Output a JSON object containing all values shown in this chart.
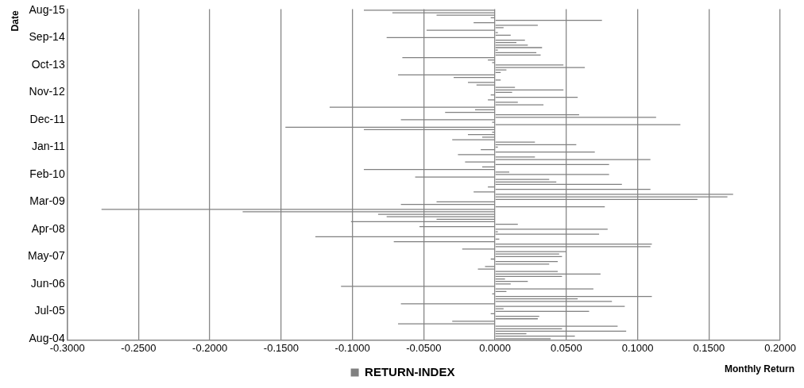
{
  "chart_data": {
    "type": "bar",
    "orientation": "horizontal",
    "ylabel": "Date",
    "xlabel": "Monthly Return",
    "categories": [
      "Aug-15",
      null,
      null,
      null,
      null,
      null,
      null,
      null,
      null,
      null,
      null,
      "Sep-14",
      null,
      null,
      null,
      null,
      null,
      null,
      null,
      null,
      null,
      null,
      "Oct-13",
      null,
      null,
      null,
      null,
      null,
      null,
      null,
      null,
      null,
      null,
      "Nov-12",
      null,
      null,
      null,
      null,
      null,
      null,
      null,
      null,
      null,
      null,
      "Dec-11",
      null,
      null,
      null,
      null,
      null,
      null,
      null,
      null,
      null,
      null,
      "Jan-11",
      null,
      null,
      null,
      null,
      null,
      null,
      null,
      null,
      null,
      null,
      "Feb-10",
      null,
      null,
      null,
      null,
      null,
      null,
      null,
      null,
      null,
      null,
      "Mar-09",
      null,
      null,
      null,
      null,
      null,
      null,
      null,
      null,
      null,
      null,
      "Apr-08",
      null,
      null,
      null,
      null,
      null,
      null,
      null,
      null,
      null,
      null,
      "May-07",
      null,
      null,
      null,
      null,
      null,
      null,
      null,
      null,
      null,
      null,
      "Jun-06",
      null,
      null,
      null,
      null,
      null,
      null,
      null,
      null,
      null,
      null,
      "Jul-05",
      null,
      null,
      null,
      null,
      null,
      null,
      null,
      null,
      null,
      null,
      "Aug-04"
    ],
    "series": [
      {
        "name": "RETURN-INDEX",
        "color": "#808080",
        "values": [
          -0.092,
          -0.072,
          -0.041,
          -0.003,
          0.075,
          -0.015,
          0.03,
          0.006,
          -0.048,
          0.002,
          0.011,
          -0.076,
          0.021,
          0.015,
          0.023,
          0.033,
          0.002,
          0.029,
          0.032,
          -0.065,
          -0.005,
          -0.002,
          0.048,
          0.063,
          0.008,
          0.004,
          -0.068,
          -0.029,
          0.004,
          -0.019,
          -0.013,
          0.014,
          0.048,
          0.012,
          -0.003,
          0.058,
          -0.005,
          0.016,
          0.034,
          -0.116,
          -0.014,
          -0.035,
          0.059,
          0.113,
          -0.066,
          -0.002,
          0.13,
          -0.147,
          -0.092,
          -0.002,
          -0.019,
          -0.009,
          -0.03,
          0.028,
          0.057,
          0.002,
          -0.01,
          0.07,
          -0.026,
          0.028,
          0.109,
          -0.021,
          0.08,
          -0.009,
          -0.092,
          0.01,
          0.08,
          -0.056,
          0.038,
          0.043,
          0.089,
          -0.005,
          0.109,
          -0.015,
          0.167,
          0.163,
          0.142,
          -0.041,
          -0.066,
          0.077,
          -0.276,
          -0.177,
          -0.082,
          -0.076,
          -0.041,
          -0.101,
          0.016,
          -0.053,
          0.079,
          0.002,
          0.073,
          -0.126,
          0.003,
          -0.071,
          0.11,
          0.109,
          -0.023,
          0.05,
          0.045,
          0.047,
          -0.003,
          0.044,
          0.038,
          -0.007,
          -0.012,
          0.044,
          0.074,
          0.047,
          0.007,
          0.023,
          0.011,
          -0.108,
          0.069,
          0.008,
          -0.002,
          0.11,
          0.058,
          0.082,
          -0.066,
          0.091,
          0.006,
          0.066,
          -0.003,
          0.031,
          0.03,
          -0.03,
          -0.068,
          0.086,
          0.047,
          0.092,
          0.022,
          0.056,
          0.039
        ]
      }
    ],
    "xlim": [
      -0.3,
      0.2
    ],
    "xticks": [
      {
        "value": -0.3,
        "label": "-0.3000"
      },
      {
        "value": -0.25,
        "label": "-0.2500"
      },
      {
        "value": -0.2,
        "label": "-0.2000"
      },
      {
        "value": -0.15,
        "label": "-0.1500"
      },
      {
        "value": -0.1,
        "label": "-0.1000"
      },
      {
        "value": -0.05,
        "label": "-0.0500"
      },
      {
        "value": 0,
        "label": "0.0000"
      },
      {
        "value": 0.05,
        "label": "0.0500"
      },
      {
        "value": 0.1,
        "label": "0.1000"
      },
      {
        "value": 0.15,
        "label": "0.1500"
      },
      {
        "value": 0.2,
        "label": "0.2000"
      }
    ],
    "grid": "x",
    "legend": "bottom"
  }
}
